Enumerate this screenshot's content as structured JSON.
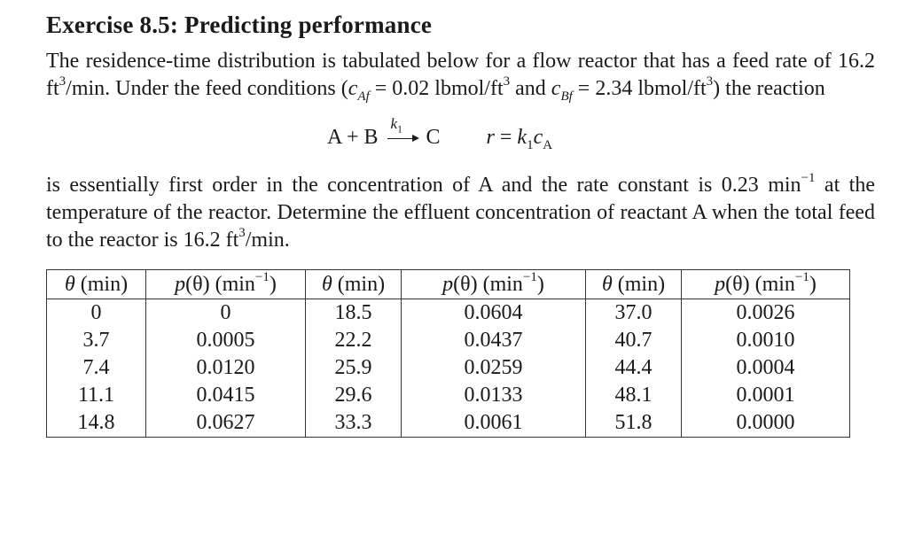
{
  "exercise": {
    "title": "Exercise 8.5: Predicting performance",
    "para1": {
      "t1": "The residence-time distribution is tabulated below for a flow reactor that has a feed rate of 16.2 ft",
      "t1_sup": "3",
      "t2": "/min. Under the feed conditions (",
      "caf_var": "c",
      "caf_sub": "Af",
      "t3": " = 0.02 lbmol/ft",
      "t3_sup": "3",
      "t4": " and ",
      "cbf_var": "c",
      "cbf_sub": "Bf",
      "t5": " = 2.34 lbmol/ft",
      "t5_sup": "3",
      "t6": ") the reaction"
    },
    "equation": {
      "left": "A + B",
      "k_label": "k",
      "k_sub": "1",
      "right": "C",
      "rate_r": "r",
      "rate_eq": " = ",
      "rate_k": "k",
      "rate_k_sub": "1",
      "rate_c": "c",
      "rate_c_sub": "A"
    },
    "para2": {
      "t1": "is essentially first order in the concentration of A and the rate constant is 0.23 min",
      "t1_sup": "−1",
      "t2": " at the temperature of the reactor. Determine the effluent concentration of reactant A when the total feed to the reactor is 16.2 ft",
      "t2_sup": "3",
      "t3": "/min."
    },
    "table": {
      "headers": [
        {
          "var": "θ",
          "unit": " (min)",
          "sup": ""
        },
        {
          "var": "p",
          "unit": "(θ) (min",
          "sup": "−1",
          "tail": ")"
        },
        {
          "var": "θ",
          "unit": " (min)",
          "sup": ""
        },
        {
          "var": "p",
          "unit": "(θ) (min",
          "sup": "−1",
          "tail": ")"
        },
        {
          "var": "θ",
          "unit": " (min)",
          "sup": ""
        },
        {
          "var": "p",
          "unit": "(θ) (min",
          "sup": "−1",
          "tail": ")"
        }
      ],
      "rows": [
        [
          "0",
          "0",
          "18.5",
          "0.0604",
          "37.0",
          "0.0026"
        ],
        [
          "3.7",
          "0.0005",
          "22.2",
          "0.0437",
          "40.7",
          "0.0010"
        ],
        [
          "7.4",
          "0.0120",
          "25.9",
          "0.0259",
          "44.4",
          "0.0004"
        ],
        [
          "11.1",
          "0.0415",
          "29.6",
          "0.0133",
          "48.1",
          "0.0001"
        ],
        [
          "14.8",
          "0.0627",
          "33.3",
          "0.0061",
          "51.8",
          "0.0000"
        ]
      ]
    }
  }
}
